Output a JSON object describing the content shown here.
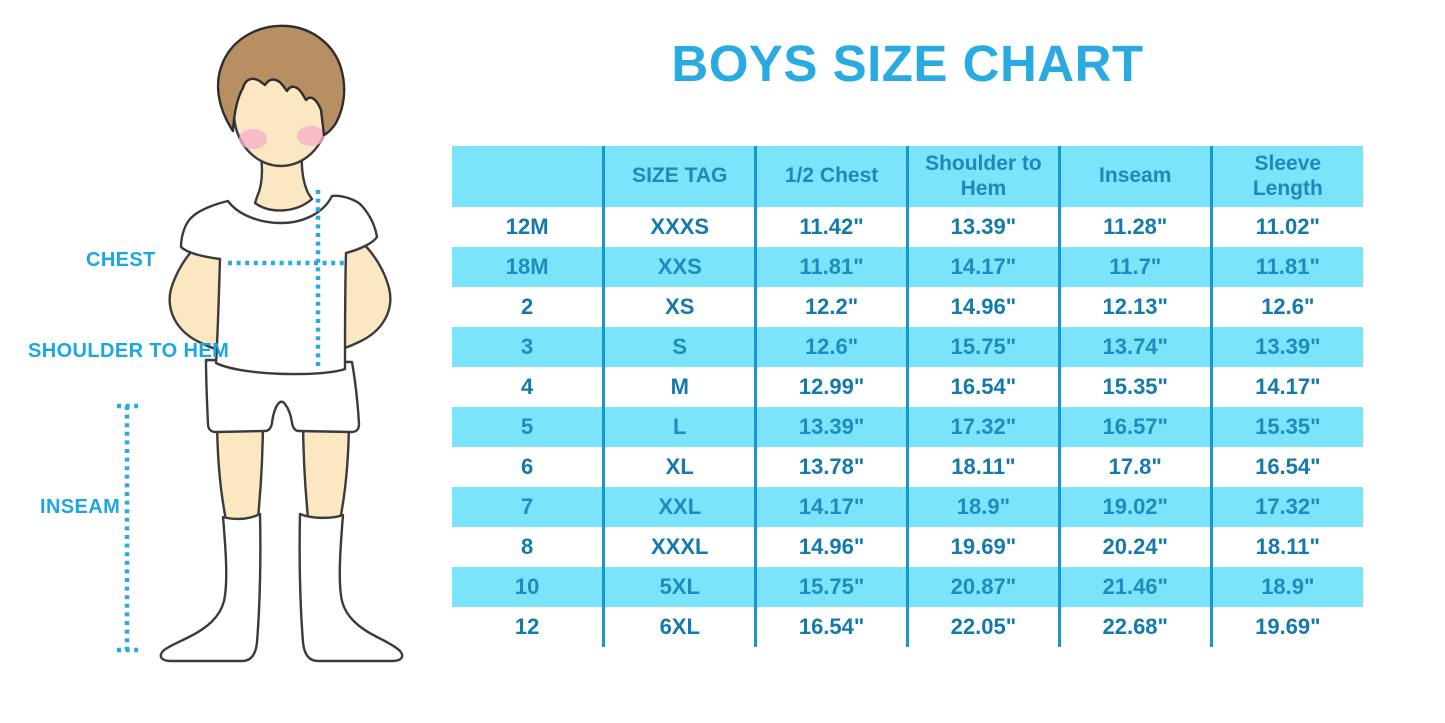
{
  "title": "BOYS SIZE CHART",
  "figure": {
    "labels": {
      "chest": "CHEST",
      "shoulder_to_hem": "SHOULDER TO HEM",
      "inseam": "INSEAM"
    }
  },
  "chart_data": {
    "type": "table",
    "title": "BOYS SIZE CHART",
    "columns": [
      "",
      "SIZE TAG",
      "1/2 Chest",
      "Shoulder to Hem",
      "Inseam",
      "Sleeve Length"
    ],
    "rows": [
      [
        "12M",
        "XXXS",
        "11.42\"",
        "13.39\"",
        "11.28\"",
        "11.02\""
      ],
      [
        "18M",
        "XXS",
        "11.81\"",
        "14.17\"",
        "11.7\"",
        "11.81\""
      ],
      [
        "2",
        "XS",
        "12.2\"",
        "14.96\"",
        "12.13\"",
        "12.6\""
      ],
      [
        "3",
        "S",
        "12.6\"",
        "15.75\"",
        "13.74\"",
        "13.39\""
      ],
      [
        "4",
        "M",
        "12.99\"",
        "16.54\"",
        "15.35\"",
        "14.17\""
      ],
      [
        "5",
        "L",
        "13.39\"",
        "17.32\"",
        "16.57\"",
        "15.35\""
      ],
      [
        "6",
        "XL",
        "13.78\"",
        "18.11\"",
        "17.8\"",
        "16.54\""
      ],
      [
        "7",
        "XXL",
        "14.17\"",
        "18.9\"",
        "19.02\"",
        "17.32\""
      ],
      [
        "8",
        "XXXL",
        "14.96\"",
        "19.69\"",
        "20.24\"",
        "18.11\""
      ],
      [
        "10",
        "5XL",
        "15.75\"",
        "20.87\"",
        "21.46\"",
        "18.9\""
      ],
      [
        "12",
        "6XL",
        "16.54\"",
        "22.05\"",
        "22.68\"",
        "19.69\""
      ]
    ],
    "row_striping": "white and light-blue alternating, header light-blue",
    "grid": "vertical dividers only"
  },
  "colors": {
    "title_blue": "#29ABE2",
    "row_light_blue": "#7BE3FA",
    "divider_blue": "#1896CE",
    "cell_text_on_white": "#1479AD",
    "cell_text_on_blue": "#1E8CBF",
    "header_text": "#2187B8",
    "measure_label_blue": "#1CA7E3",
    "dotted_line_blue": "#29ABE2",
    "skin": "#FBE7C2",
    "hair": "#B78F63",
    "cheek": "#F4AFC7",
    "outline": "#3B3B3B"
  }
}
